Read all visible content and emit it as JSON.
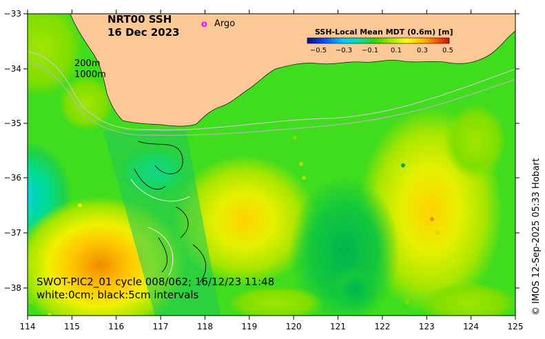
{
  "title": {
    "line1": "NRT00 SSH",
    "line2": "16 Dec 2023"
  },
  "legend": {
    "argo_marker": "o",
    "argo_label": "Argo",
    "argo_color": "#ff00ff"
  },
  "colorbar": {
    "title": "SSH-Local Mean MDT (0.6m) [m]",
    "ticks": [
      "−0.5",
      "−0.3",
      "−0.1",
      "0.1",
      "0.3",
      "0.5"
    ],
    "colors": [
      "#0a0a8c",
      "#0050ff",
      "#00c8ff",
      "#00e0a0",
      "#38d200",
      "#9ae600",
      "#ffff00",
      "#ffb400",
      "#ff5000",
      "#c81400"
    ]
  },
  "depth_labels": [
    "200m",
    "1000m"
  ],
  "caption": {
    "line1": "SWOT-PIC2_01 cycle 008/062; 16/12/23 11:48",
    "line2": "white:0cm; black:5cm intervals"
  },
  "credit": "© IMOS 12-Sep-2025 05:33 Hobart",
  "axes": {
    "x_ticks": [
      "114",
      "115",
      "116",
      "117",
      "118",
      "119",
      "120",
      "121",
      "122",
      "123",
      "124",
      "125"
    ],
    "y_ticks": [
      "−33",
      "−34",
      "−35",
      "−36",
      "−37",
      "−38"
    ],
    "x_range": [
      114,
      125
    ],
    "y_range": [
      -38.5,
      -33
    ]
  },
  "colors": {
    "land": "#fcc896",
    "ocean_base": "#40dc1e",
    "isobath": "#c8c8c8"
  }
}
